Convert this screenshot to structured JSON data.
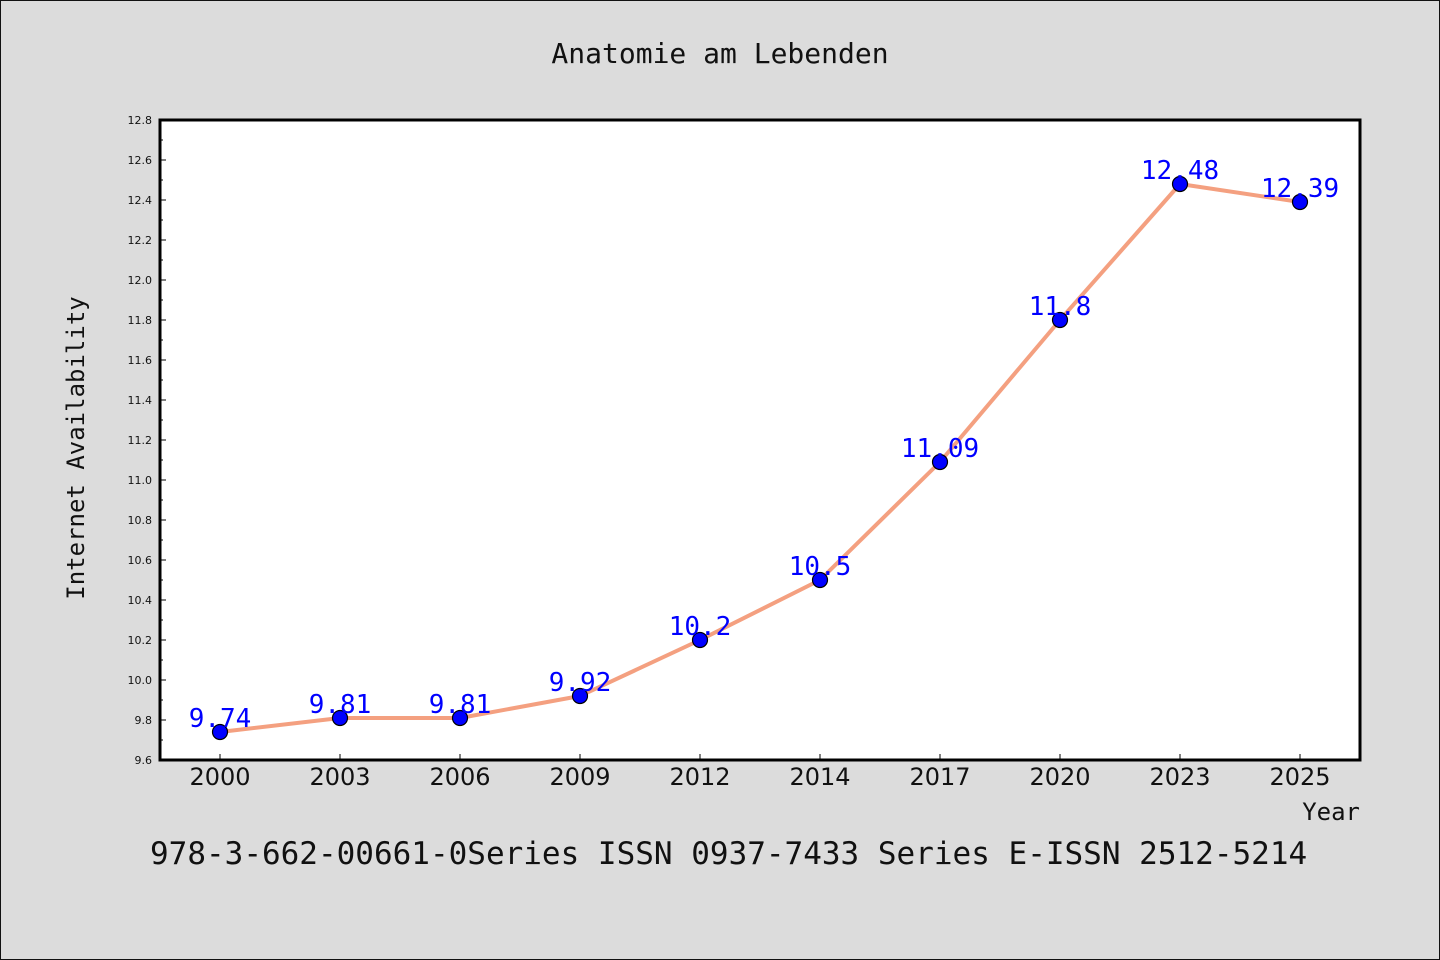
{
  "footer": {
    "text": "978-3-662-00661-0Series ISSN 0937-7433 Series E-ISSN 2512-5214"
  },
  "colors": {
    "background": "#dcdcdc",
    "plot_background": "#ffffff",
    "line": "#f4a080",
    "marker": "#0000ff",
    "label": "#0000ff"
  },
  "chart_data": {
    "type": "line",
    "title": "Anatomie am Lebenden",
    "xlabel": "Year",
    "ylabel": "Internet Availability",
    "categories": [
      "2000",
      "2003",
      "2006",
      "2009",
      "2012",
      "2014",
      "2017",
      "2020",
      "2023",
      "2025"
    ],
    "series": [
      {
        "values": [
          9.74,
          9.81,
          9.81,
          9.92,
          10.2,
          10.5,
          11.09,
          11.8,
          12.48,
          12.39
        ],
        "data_labels": [
          "9.74",
          "9.81",
          "9.81",
          "9.92",
          "10.2",
          "10.5",
          "11.09",
          "11.8",
          "12.48",
          "12.39"
        ]
      }
    ],
    "ylim": [
      9.6,
      12.8
    ],
    "yticks": [
      "9.6",
      "9.8",
      "10.0",
      "10.2",
      "10.4",
      "10.6",
      "10.8",
      "11.0",
      "11.2",
      "11.4",
      "11.6",
      "11.8",
      "12.0",
      "12.2",
      "12.4",
      "12.6",
      "12.8"
    ],
    "grid": false,
    "legend": "none"
  }
}
